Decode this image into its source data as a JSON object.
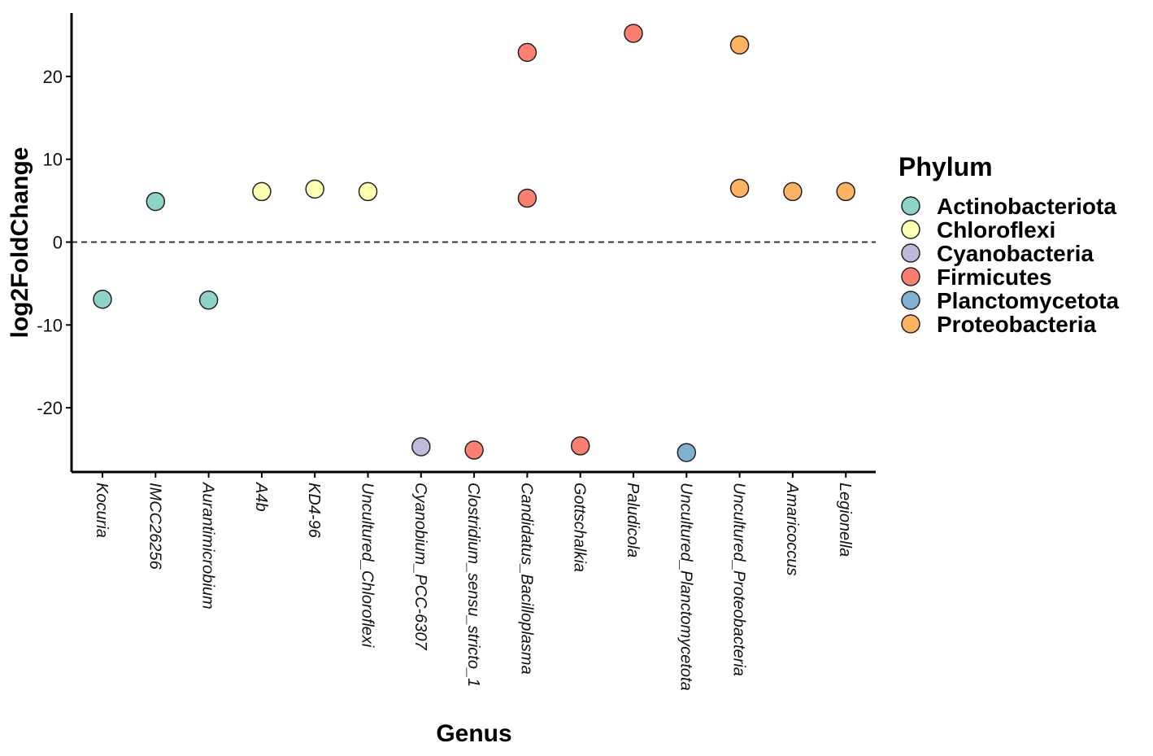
{
  "chart_data": {
    "type": "scatter",
    "title": "",
    "xlabel": "Genus",
    "ylabel": "log2FoldChange",
    "ylim": [
      -27.5,
      27.5
    ],
    "yticks": [
      -20,
      -10,
      0,
      10,
      20
    ],
    "ytick_labels": [
      "-20",
      "-10",
      "0",
      "10",
      "20"
    ],
    "reference_line": 0,
    "categories": [
      "Kocuria",
      "IMCC26256",
      "Aurantimicrobium",
      "A4b",
      "KD4-96",
      "Uncultured_Chloroflexi",
      "Cyanobium_PCC-6307",
      "Clostridium_sensu_stricto_1",
      "Candidatus_Bacilloplasma",
      "Gottschalkia",
      "Paludicola",
      "Uncultured_Planctomycetota",
      "Uncultured_Proteobacteria",
      "Amaricoccus",
      "Legionella"
    ],
    "legend_title": "Phylum",
    "legend_position": "right",
    "series": [
      {
        "name": "Actinobacteriota",
        "color": "#8dd3c7",
        "points": [
          {
            "x": "Kocuria",
            "y": -6.9
          },
          {
            "x": "IMCC26256",
            "y": 4.9
          },
          {
            "x": "Aurantimicrobium",
            "y": -7.0
          }
        ]
      },
      {
        "name": "Chloroflexi",
        "color": "#ffffb3",
        "points": [
          {
            "x": "A4b",
            "y": 6.1
          },
          {
            "x": "KD4-96",
            "y": 6.4
          },
          {
            "x": "Uncultured_Chloroflexi",
            "y": 6.1
          }
        ]
      },
      {
        "name": "Cyanobacteria",
        "color": "#bebada",
        "points": [
          {
            "x": "Cyanobium_PCC-6307",
            "y": -24.7
          }
        ]
      },
      {
        "name": "Firmicutes",
        "color": "#fb8072",
        "points": [
          {
            "x": "Clostridium_sensu_stricto_1",
            "y": -25.1
          },
          {
            "x": "Candidatus_Bacilloplasma",
            "y": 22.9
          },
          {
            "x": "Candidatus_Bacilloplasma",
            "y": 5.3
          },
          {
            "x": "Gottschalkia",
            "y": -24.6
          },
          {
            "x": "Paludicola",
            "y": 25.2
          }
        ]
      },
      {
        "name": "Planctomycetota",
        "color": "#80b1d3",
        "points": [
          {
            "x": "Uncultured_Planctomycetota",
            "y": -25.4
          }
        ]
      },
      {
        "name": "Proteobacteria",
        "color": "#fdb462",
        "points": [
          {
            "x": "Uncultured_Proteobacteria",
            "y": 23.8
          },
          {
            "x": "Uncultured_Proteobacteria",
            "y": 6.5
          },
          {
            "x": "Amaricoccus",
            "y": 6.1
          },
          {
            "x": "Legionella",
            "y": 6.1
          }
        ]
      }
    ]
  }
}
